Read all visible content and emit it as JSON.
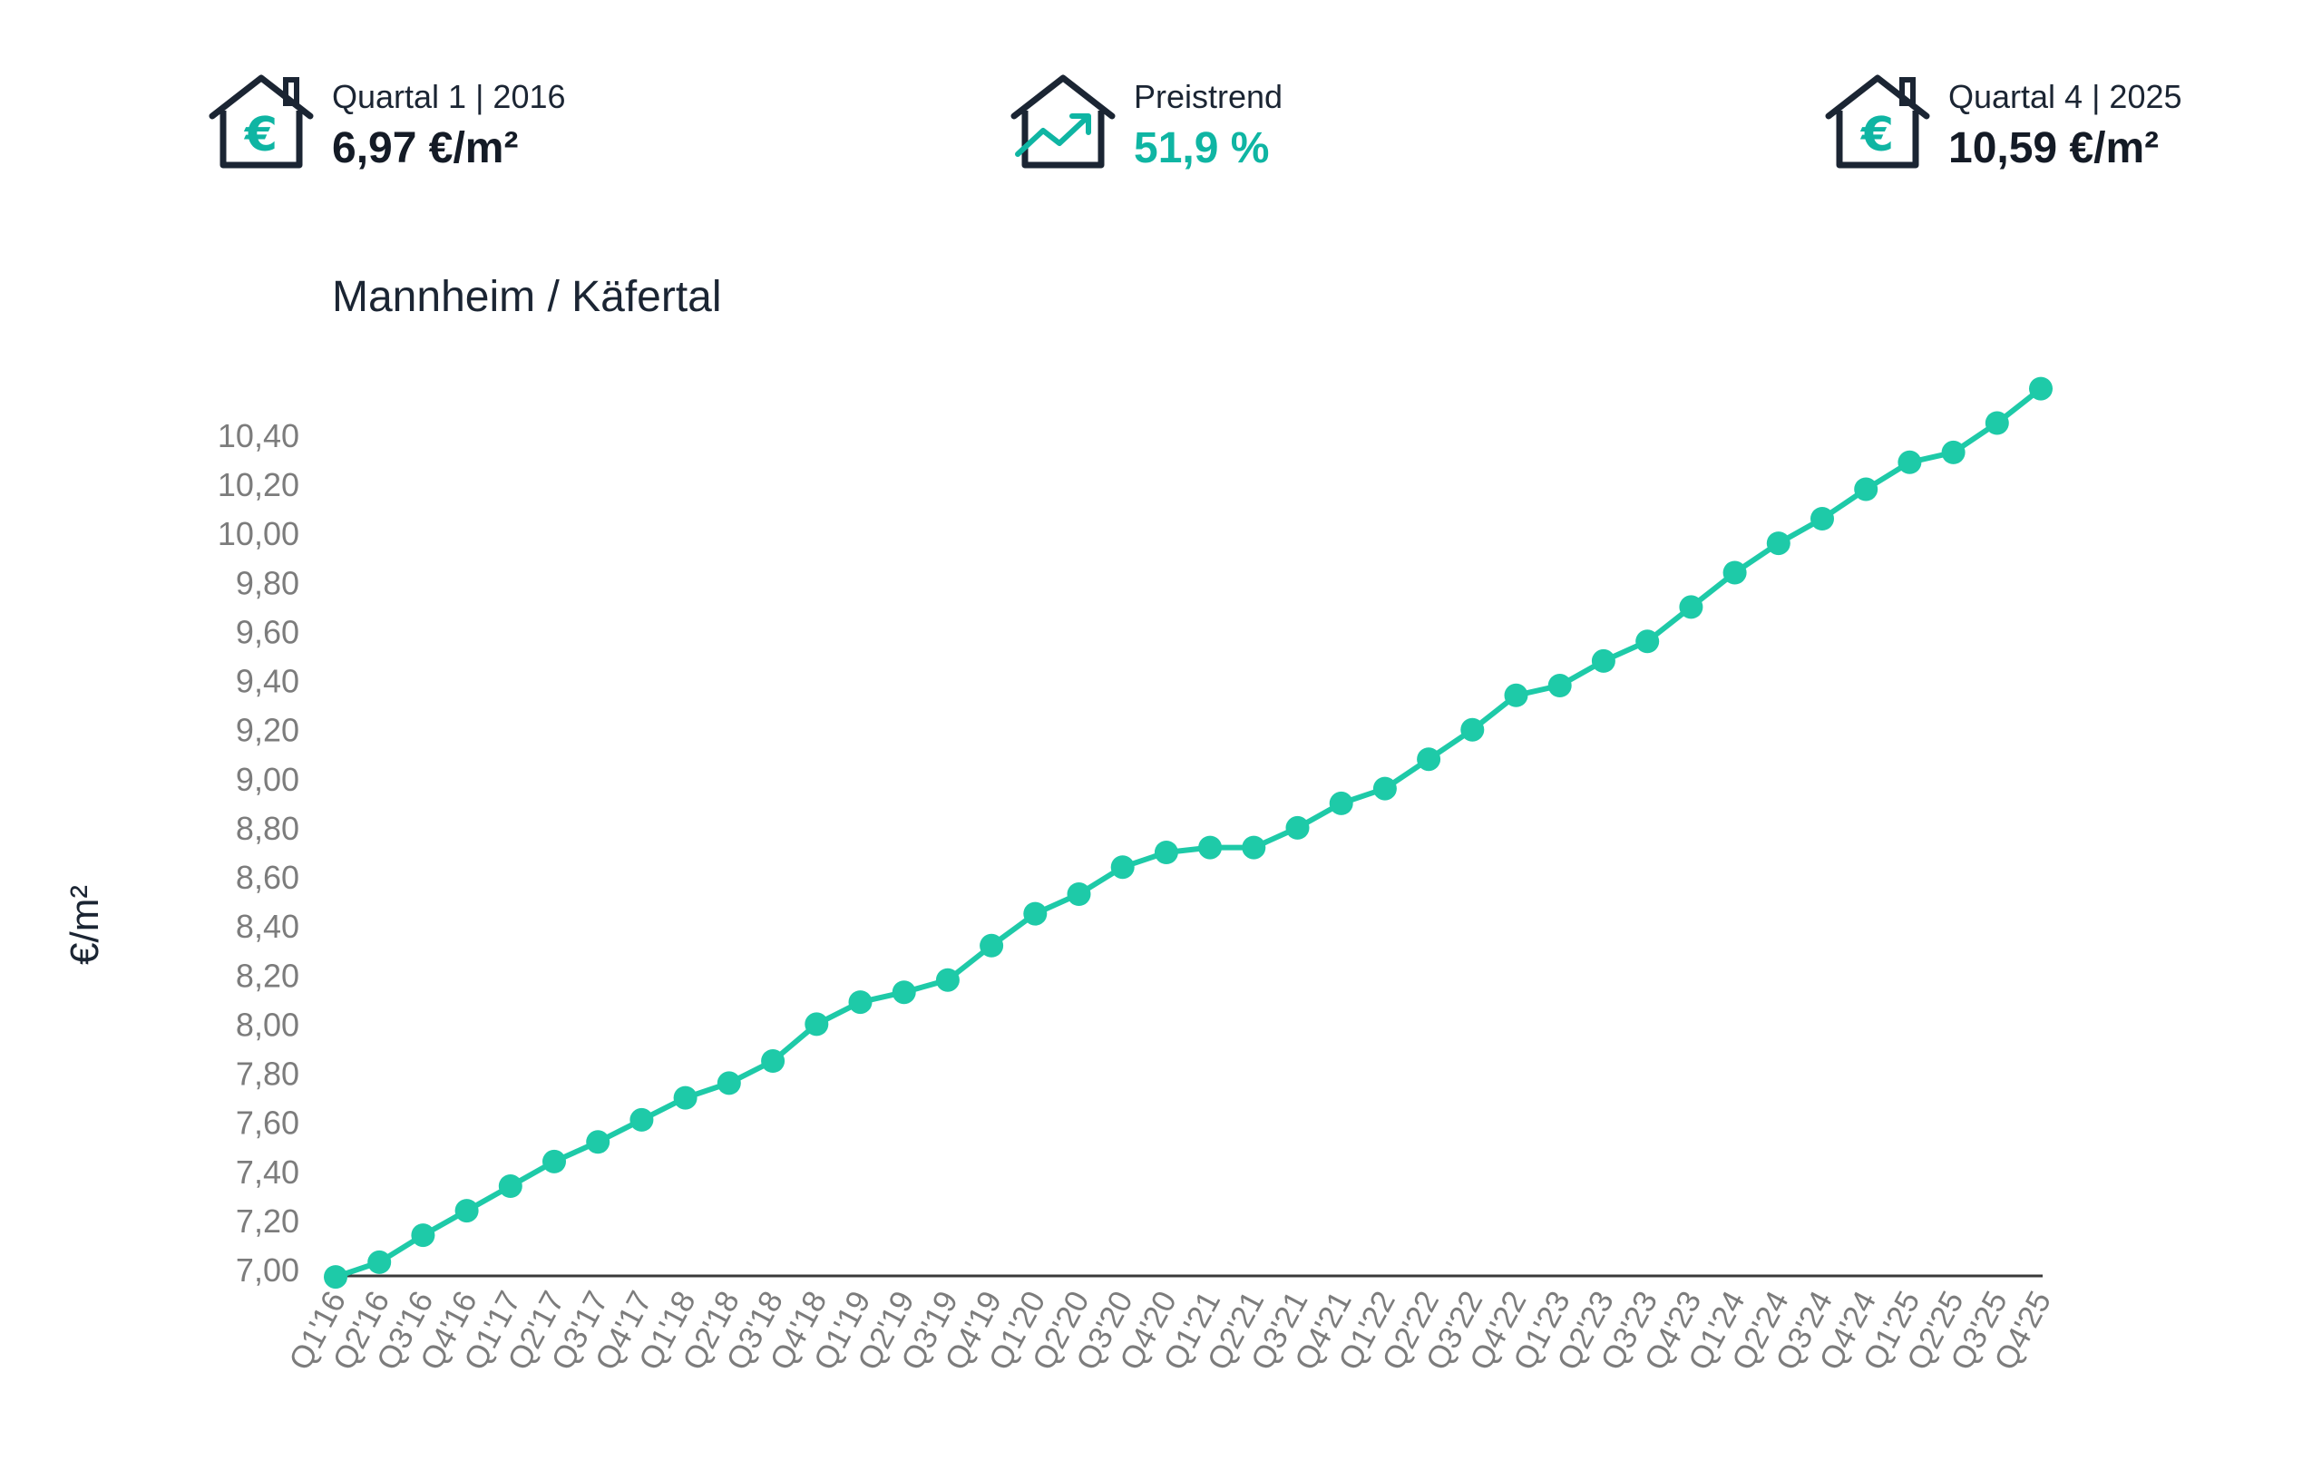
{
  "kpis": {
    "start": {
      "label": "Quartal 1 | 2016",
      "value": "6,97 €/m²",
      "icon": "house-euro-icon"
    },
    "trend": {
      "label": "Preistrend",
      "value": "51,9 %",
      "icon": "house-trend-icon"
    },
    "end": {
      "label": "Quartal 4 | 2025",
      "value": "10,59 €/m²",
      "icon": "house-euro-icon"
    }
  },
  "colors": {
    "accent": "#0fb5a3",
    "line": "#1ecaa8",
    "text": "#1b2533",
    "axis": "#3a3a3a",
    "ticks": "#7c7c7c"
  },
  "chart_data": {
    "type": "line",
    "title": "Mannheim / Käfertal",
    "xlabel": "",
    "ylabel": "€/m²",
    "ylim": [
      7.0,
      10.4
    ],
    "grid": false,
    "yticks": [
      "7,00",
      "7,20",
      "7,40",
      "7,60",
      "7,80",
      "8,00",
      "8,20",
      "8,40",
      "8,60",
      "8,80",
      "9,00",
      "9,20",
      "9,40",
      "9,60",
      "9,80",
      "10,00",
      "10,20",
      "10,40"
    ],
    "categories": [
      "Q1'16",
      "Q2'16",
      "Q3'16",
      "Q4'16",
      "Q1'17",
      "Q2'17",
      "Q3'17",
      "Q4'17",
      "Q1'18",
      "Q2'18",
      "Q3'18",
      "Q4'18",
      "Q1'19",
      "Q2'19",
      "Q3'19",
      "Q4'19",
      "Q1'20",
      "Q2'20",
      "Q3'20",
      "Q4'20",
      "Q1'21",
      "Q2'21",
      "Q3'21",
      "Q4'21",
      "Q1'22",
      "Q2'22",
      "Q3'22",
      "Q4'22",
      "Q1'23",
      "Q2'23",
      "Q3'23",
      "Q4'23",
      "Q1'24",
      "Q2'24",
      "Q3'24",
      "Q4'24",
      "Q1'25",
      "Q2'25",
      "Q3'25",
      "Q4'25"
    ],
    "series": [
      {
        "values": [
          6.97,
          7.03,
          7.14,
          7.24,
          7.34,
          7.44,
          7.52,
          7.61,
          7.7,
          7.76,
          7.85,
          8.0,
          8.09,
          8.13,
          8.18,
          8.32,
          8.45,
          8.53,
          8.64,
          8.7,
          8.72,
          8.72,
          8.8,
          8.9,
          8.96,
          9.08,
          9.2,
          9.34,
          9.38,
          9.48,
          9.56,
          9.7,
          9.84,
          9.96,
          10.06,
          10.18,
          10.29,
          10.33,
          10.45,
          10.59
        ]
      }
    ]
  }
}
